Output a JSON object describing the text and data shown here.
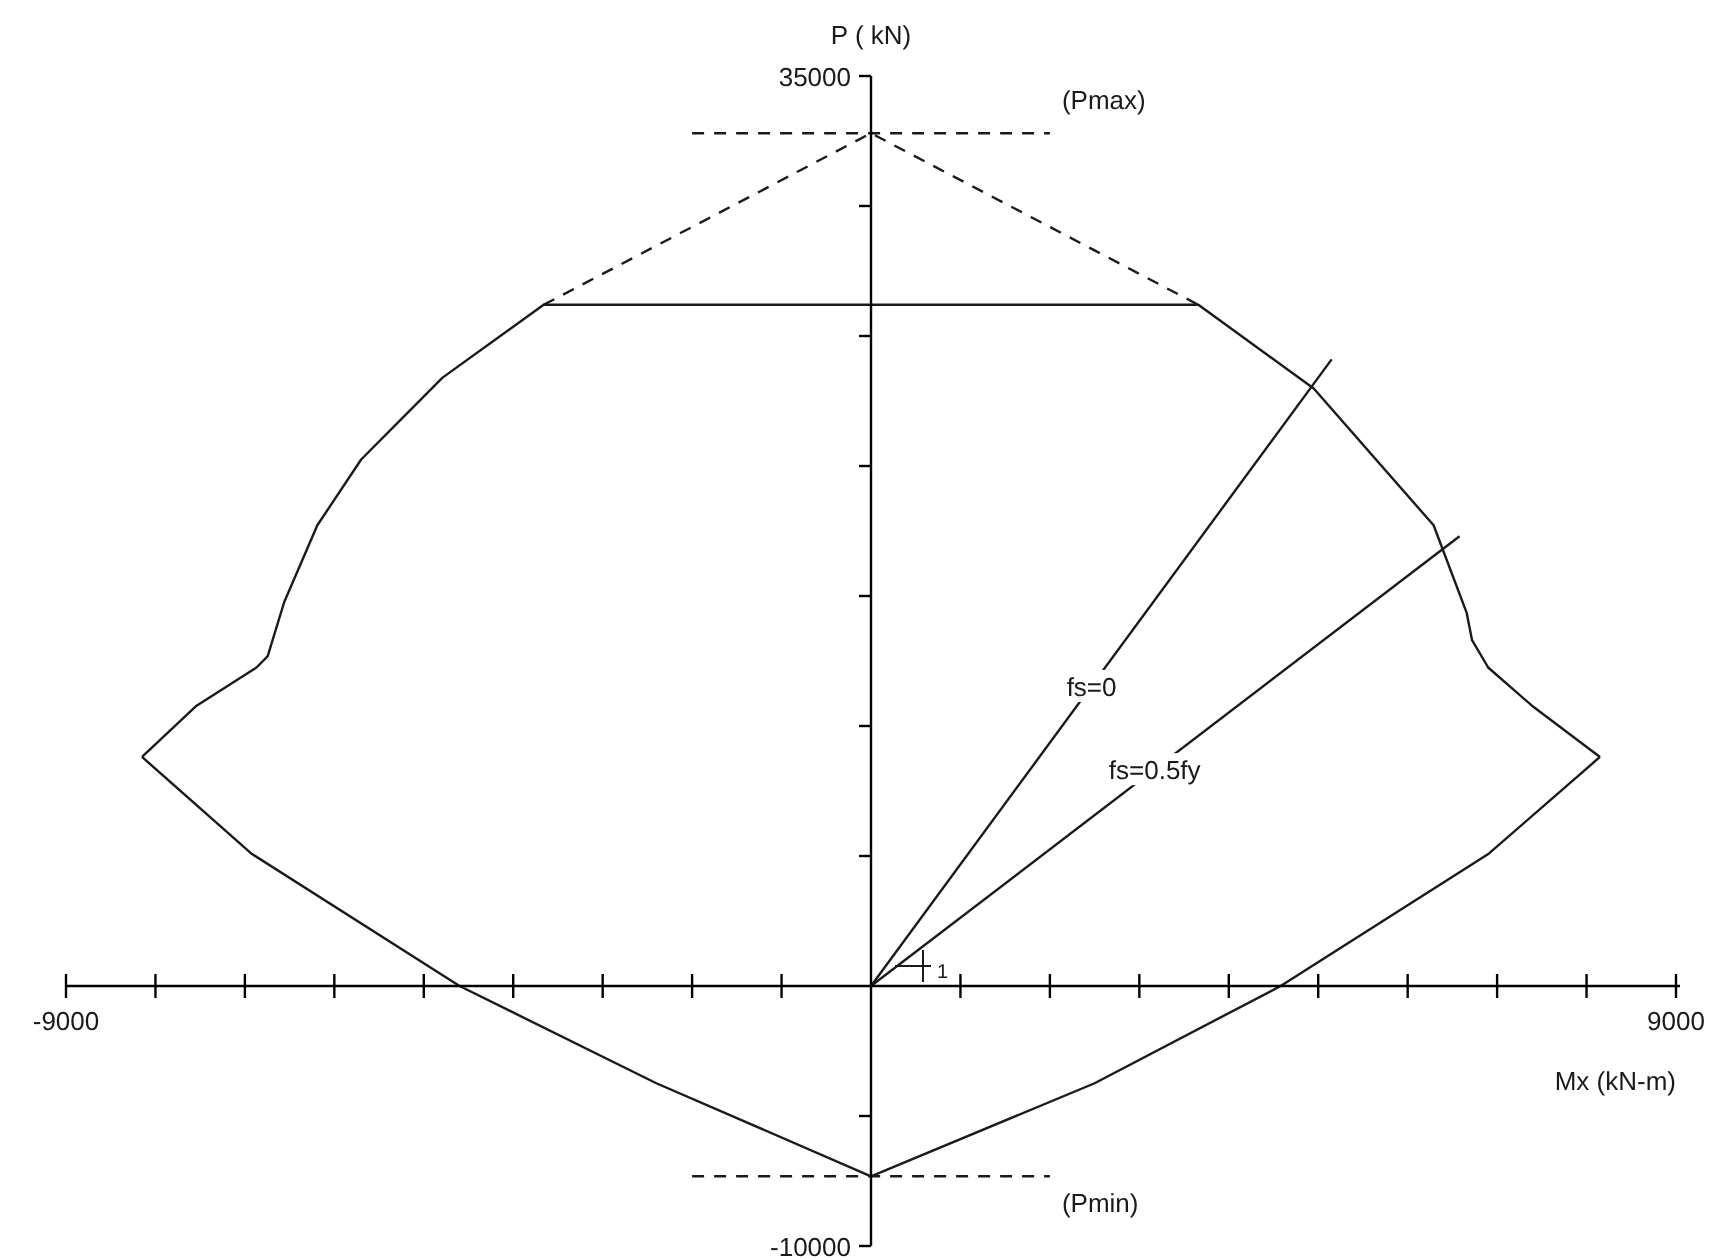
{
  "chart_data": {
    "type": "line",
    "xlabel": "Mx (kN-m)",
    "ylabel": "P ( kN)",
    "xlim": [
      -9000,
      9000
    ],
    "ylim": [
      -10000,
      35000
    ],
    "xticks": [
      -9000,
      {
        "value": -8000,
        "label": null
      },
      {
        "value": -7000,
        "label": null
      },
      {
        "value": -6000,
        "label": null
      },
      {
        "value": -5000,
        "label": null
      },
      {
        "value": -4000,
        "label": null
      },
      {
        "value": -3000,
        "label": null
      },
      {
        "value": -2000,
        "label": null
      },
      {
        "value": -1000,
        "label": null
      },
      {
        "value": 1000,
        "label": null
      },
      {
        "value": 2000,
        "label": null
      },
      {
        "value": 3000,
        "label": null
      },
      {
        "value": 4000,
        "label": null
      },
      {
        "value": 5000,
        "label": null
      },
      {
        "value": 6000,
        "label": null
      },
      {
        "value": 7000,
        "label": null
      },
      {
        "value": 8000,
        "label": null
      },
      9000
    ],
    "yticks": [
      -10000,
      {
        "value": -5000,
        "label": null
      },
      {
        "value": 5000,
        "label": null
      },
      {
        "value": 10000,
        "label": null
      },
      {
        "value": 15000,
        "label": null
      },
      {
        "value": 20000,
        "label": null
      },
      {
        "value": 25000,
        "label": null
      },
      {
        "value": 30000,
        "label": null
      },
      35000
    ],
    "grid": false,
    "series": [
      {
        "color": "#1a1a1a",
        "line_style": "solid",
        "x": [
          -8150,
          -6930,
          -4600,
          -2400,
          0
        ],
        "values": [
          8810,
          5100,
          0,
          -3740,
          -7320
        ]
      },
      {
        "color": "#1a1a1a",
        "line_style": "solid",
        "x": [
          -8150,
          -7540,
          -6870,
          -6745,
          -6560,
          -6190,
          -5700,
          -4790,
          -3660,
          3660,
          4950,
          6290,
          6660,
          6720,
          6900,
          7390,
          8150
        ],
        "values": [
          8810,
          10780,
          12250,
          12690,
          14770,
          17720,
          20250,
          23400,
          26200,
          26200,
          22980,
          17720,
          14350,
          13300,
          12250,
          10780,
          8810
        ]
      },
      {
        "color": "#1a1a1a",
        "line_style": "solid",
        "x": [
          0,
          2500,
          4580,
          6910,
          8150
        ],
        "values": [
          -7320,
          -3740,
          0,
          5100,
          8810
        ]
      },
      {
        "color": "#1a1a1a",
        "line_style": "dashed",
        "x": [
          -3660,
          0,
          3660
        ],
        "values": [
          26200,
          32800,
          26200
        ]
      },
      {
        "color": "#1a1a1a",
        "line_style": "dashed",
        "x": [
          -2000,
          2000
        ],
        "values": [
          32800,
          32800
        ]
      },
      {
        "color": "#1a1a1a",
        "line_style": "dashed",
        "x": [
          -2000,
          2000
        ],
        "values": [
          -7320,
          -7320
        ]
      },
      {
        "color": "#1a1a1a",
        "line_style": "solid",
        "x": [
          0,
          5150
        ],
        "values": [
          0,
          24100
        ]
      },
      {
        "color": "#1a1a1a",
        "line_style": "solid",
        "x": [
          0,
          6580
        ],
        "values": [
          0,
          17300
        ]
      }
    ],
    "annotations": [
      {
        "text": "(Pmax)",
        "x": 2000,
        "y": 32800
      },
      {
        "text": "(Pmin)",
        "x": 2000,
        "y": -7320
      },
      {
        "text": "fs=0",
        "x": 2466,
        "y": 11540
      },
      {
        "text": "fs=0.5fy",
        "x": 3172,
        "y": 8340
      },
      "1"
    ]
  }
}
